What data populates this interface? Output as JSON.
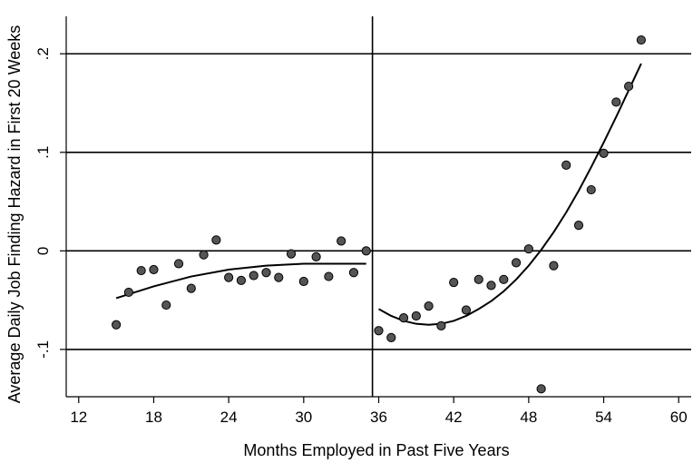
{
  "chart_data": {
    "type": "scatter",
    "title": "",
    "xlabel": "Months Employed in Past Five Years",
    "ylabel": "Average Daily Job Finding Hazard in First 20 Weeks",
    "xlim": [
      11,
      61
    ],
    "ylim": [
      -0.148,
      0.238
    ],
    "x_ticks": [
      12,
      18,
      24,
      30,
      36,
      42,
      48,
      54,
      60
    ],
    "x_tick_labels": [
      "12",
      "18",
      "24",
      "30",
      "36",
      "42",
      "48",
      "54",
      "60"
    ],
    "y_ticks": [
      -0.1,
      0,
      0.1,
      0.2
    ],
    "y_tick_labels": [
      "-.1",
      "0",
      ".1",
      ".2"
    ],
    "grid": "horizontal lines at y ticks",
    "cutoff_x": 35.5,
    "colors": {
      "points": "#555555",
      "lines": "#000000",
      "background": "#ffffff"
    },
    "series": [
      {
        "type": "scatter",
        "x": [
          15,
          16,
          17,
          18,
          19,
          20,
          21,
          22,
          23,
          24,
          25,
          26,
          27,
          28,
          29,
          30,
          31,
          32,
          33,
          34,
          35,
          36,
          37,
          38,
          39,
          40,
          41,
          42,
          43,
          44,
          45,
          46,
          47,
          48,
          49,
          50,
          51,
          52,
          53,
          54,
          55,
          56,
          57
        ],
        "y": [
          -0.075,
          -0.042,
          -0.02,
          -0.019,
          -0.055,
          -0.013,
          -0.038,
          -0.004,
          0.011,
          -0.027,
          -0.03,
          -0.025,
          -0.022,
          -0.027,
          -0.003,
          -0.031,
          -0.006,
          -0.026,
          0.01,
          -0.022,
          0.0,
          -0.081,
          -0.088,
          -0.068,
          -0.066,
          -0.056,
          -0.076,
          -0.032,
          -0.06,
          -0.029,
          -0.035,
          -0.029,
          -0.012,
          0.002,
          -0.14,
          -0.015,
          0.087,
          0.026,
          0.062,
          0.099,
          0.151,
          0.167,
          0.214
        ]
      },
      {
        "type": "line",
        "x": [
          15,
          18,
          21,
          24,
          27,
          30,
          33,
          35
        ],
        "y": [
          -0.048,
          -0.036,
          -0.026,
          -0.019,
          -0.015,
          -0.013,
          -0.013,
          -0.013
        ]
      },
      {
        "type": "line",
        "x": [
          36,
          37,
          38,
          39,
          40,
          41,
          42,
          43,
          44,
          45,
          46,
          47,
          48,
          49,
          50,
          51,
          52,
          53,
          54,
          55,
          56,
          57
        ],
        "y": [
          -0.059,
          -0.066,
          -0.071,
          -0.074,
          -0.075,
          -0.074,
          -0.071,
          -0.066,
          -0.059,
          -0.051,
          -0.041,
          -0.029,
          -0.015,
          0.001,
          0.019,
          0.039,
          0.061,
          0.085,
          0.11,
          0.136,
          0.163,
          0.19
        ]
      }
    ]
  }
}
